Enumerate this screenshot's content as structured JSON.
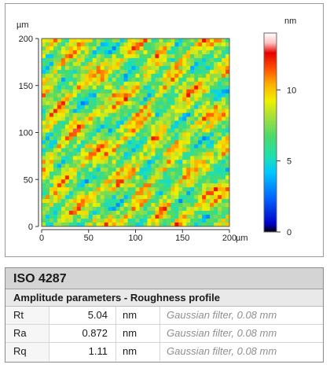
{
  "image": {
    "x_unit": "µm",
    "y_unit": "µm",
    "z_unit": "nm",
    "x_ticks": [
      "0",
      "50",
      "100",
      "150",
      "200"
    ],
    "y_ticks": [
      "0",
      "50",
      "100",
      "150",
      "200"
    ],
    "colorbar_ticks": [
      "0",
      "5",
      "10"
    ],
    "colors": {
      "scale": [
        "#000000",
        "#0000c8",
        "#0064ff",
        "#00c8ff",
        "#1fe0b0",
        "#4cd96a",
        "#a6e03a",
        "#f0f000",
        "#ffb000",
        "#ff5000",
        "#e60000",
        "#ffc0c0",
        "#ffffff"
      ]
    }
  },
  "chart_data": {
    "type": "heatmap",
    "x_range": [
      0,
      200
    ],
    "y_range": [
      0,
      200
    ],
    "z_range": [
      0,
      14
    ],
    "x_unit": "µm",
    "y_unit": "µm",
    "z_unit": "nm",
    "colorbar_ticks": [
      0,
      5,
      10
    ]
  },
  "table": {
    "title": "ISO 4287",
    "subtitle": "Amplitude parameters - Roughness profile",
    "rows": [
      {
        "name": "Rt",
        "value": "5.04",
        "unit": "nm",
        "note": "Gaussian filter, 0.08 mm"
      },
      {
        "name": "Ra",
        "value": "0.872",
        "unit": "nm",
        "note": "Gaussian filter, 0.08 mm"
      },
      {
        "name": "Rq",
        "value": "1.11",
        "unit": "nm",
        "note": "Gaussian filter, 0.08 mm"
      }
    ]
  }
}
